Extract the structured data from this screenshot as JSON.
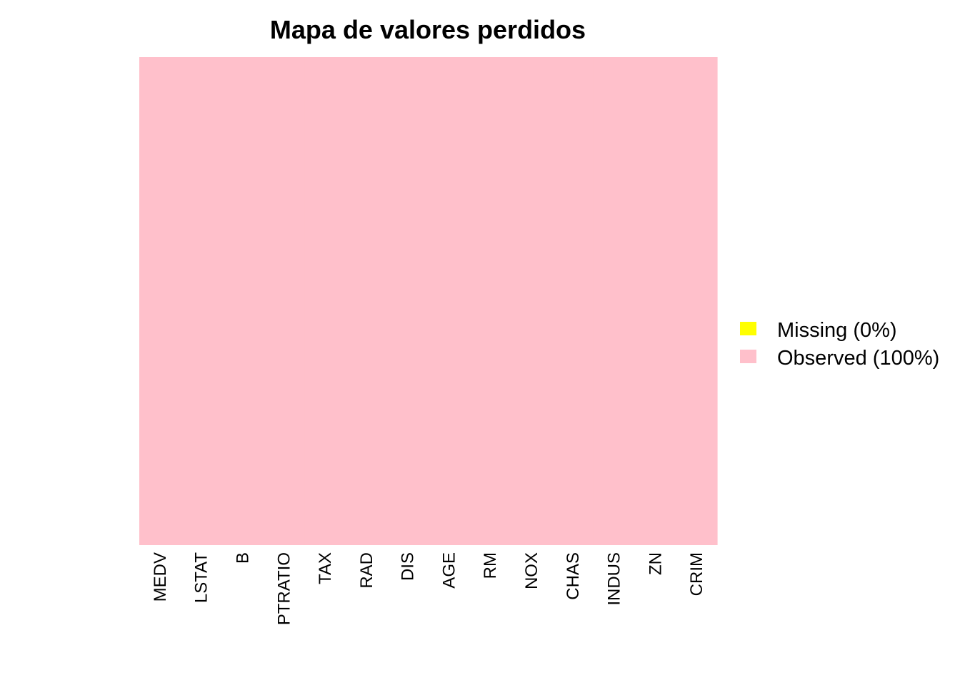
{
  "chart_data": {
    "type": "heatmap",
    "title": "Mapa de valores perdidos",
    "xlabel": "",
    "ylabel": "",
    "columns": [
      "MEDV",
      "LSTAT",
      "B",
      "PTRATIO",
      "TAX",
      "RAD",
      "DIS",
      "AGE",
      "RM",
      "NOX",
      "CHAS",
      "INDUS",
      "ZN",
      "CRIM"
    ],
    "missing_fraction": [
      0,
      0,
      0,
      0,
      0,
      0,
      0,
      0,
      0,
      0,
      0,
      0,
      0,
      0
    ],
    "grid": false,
    "legend_position": "right",
    "legend": [
      {
        "key": "missing",
        "label": "Missing (0%)",
        "color": "#ffff00"
      },
      {
        "key": "observed",
        "label": "Observed (100%)",
        "color": "#ffc0cb"
      }
    ],
    "colors": {
      "missing": "#ffff00",
      "observed": "#ffc0cb"
    }
  }
}
